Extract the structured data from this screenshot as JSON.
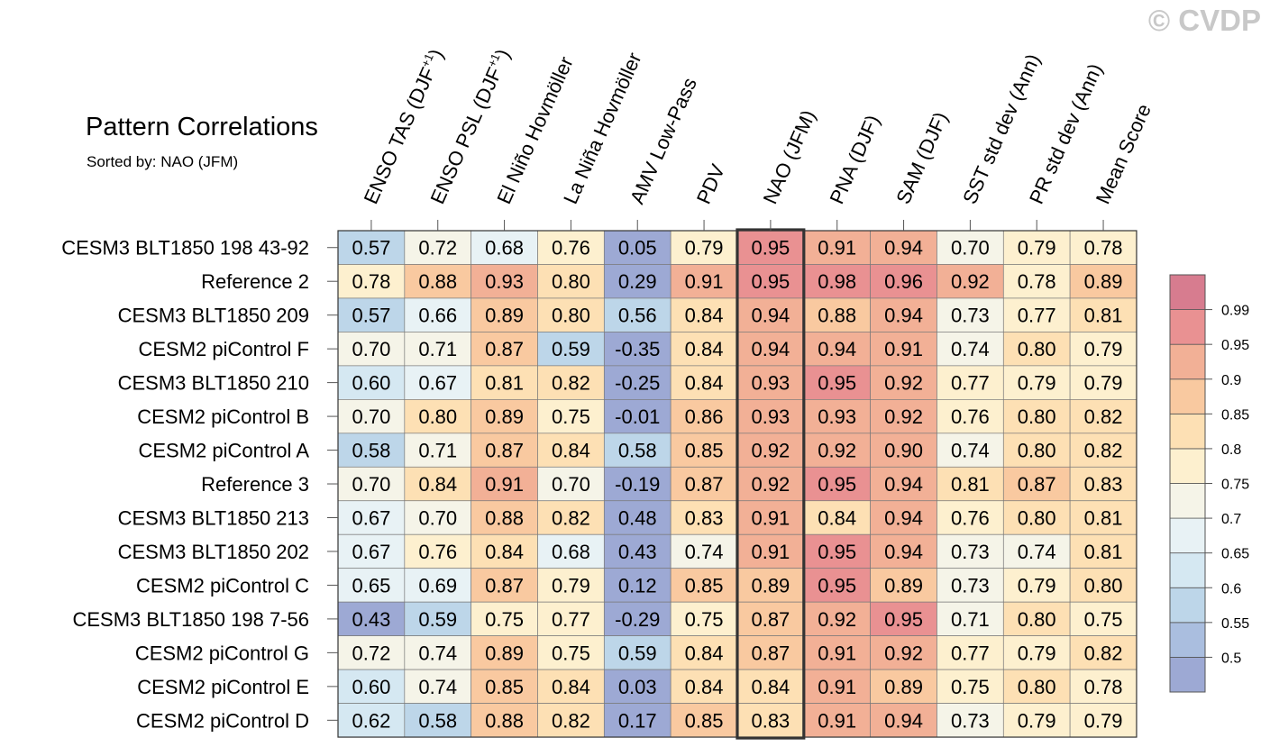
{
  "watermark": "© CVDP",
  "chart_data": {
    "type": "heatmap",
    "title": "Pattern Correlations",
    "subtitle": "Sorted by: NAO (JFM)",
    "highlight_column": "NAO (JFM)",
    "columns": [
      {
        "id": "enso-tas",
        "base": "ENSO TAS (DJF",
        "sup": "+1",
        "tail": ")"
      },
      {
        "id": "enso-psl",
        "base": "ENSO PSL (DJF",
        "sup": "+1",
        "tail": ")"
      },
      {
        "id": "el-nino",
        "base": "El Niño Hovmöller",
        "sup": "",
        "tail": ""
      },
      {
        "id": "la-nina",
        "base": "La Niña Hovmöller",
        "sup": "",
        "tail": ""
      },
      {
        "id": "amv",
        "base": "AMV Low-Pass",
        "sup": "",
        "tail": ""
      },
      {
        "id": "pdv",
        "base": "PDV",
        "sup": "",
        "tail": ""
      },
      {
        "id": "nao",
        "base": "NAO (JFM)",
        "sup": "",
        "tail": ""
      },
      {
        "id": "pna",
        "base": "PNA (DJF)",
        "sup": "",
        "tail": ""
      },
      {
        "id": "sam",
        "base": "SAM (DJF)",
        "sup": "",
        "tail": ""
      },
      {
        "id": "sst-sd",
        "base": "SST std dev (Ann)",
        "sup": "",
        "tail": ""
      },
      {
        "id": "pr-sd",
        "base": "PR std dev (Ann)",
        "sup": "",
        "tail": ""
      },
      {
        "id": "mean-score",
        "base": "Mean Score",
        "sup": "",
        "tail": ""
      }
    ],
    "rows": [
      "CESM3 BLT1850 198 43-92",
      "Reference 2",
      "CESM3 BLT1850 209",
      "CESM2 piControl F",
      "CESM3 BLT1850 210",
      "CESM2 piControl B",
      "CESM2 piControl A",
      "Reference 3",
      "CESM3 BLT1850 213",
      "CESM3 BLT1850 202",
      "CESM2 piControl C",
      "CESM3 BLT1850 198 7-56",
      "CESM2 piControl G",
      "CESM2 piControl E",
      "CESM2 piControl D"
    ],
    "values": [
      [
        "0.57",
        "0.72",
        "0.68",
        "0.76",
        "0.05",
        "0.79",
        "0.95",
        "0.91",
        "0.94",
        "0.70",
        "0.79",
        "0.78"
      ],
      [
        "0.78",
        "0.88",
        "0.93",
        "0.80",
        "0.29",
        "0.91",
        "0.95",
        "0.98",
        "0.96",
        "0.92",
        "0.78",
        "0.89"
      ],
      [
        "0.57",
        "0.66",
        "0.89",
        "0.80",
        "0.56",
        "0.84",
        "0.94",
        "0.88",
        "0.94",
        "0.73",
        "0.77",
        "0.81"
      ],
      [
        "0.70",
        "0.71",
        "0.87",
        "0.59",
        "-0.35",
        "0.84",
        "0.94",
        "0.94",
        "0.91",
        "0.74",
        "0.80",
        "0.79"
      ],
      [
        "0.60",
        "0.67",
        "0.81",
        "0.82",
        "-0.25",
        "0.84",
        "0.93",
        "0.95",
        "0.92",
        "0.77",
        "0.79",
        "0.79"
      ],
      [
        "0.70",
        "0.80",
        "0.89",
        "0.75",
        "-0.01",
        "0.86",
        "0.93",
        "0.93",
        "0.92",
        "0.76",
        "0.80",
        "0.82"
      ],
      [
        "0.58",
        "0.71",
        "0.87",
        "0.84",
        "0.58",
        "0.85",
        "0.92",
        "0.92",
        "0.90",
        "0.74",
        "0.80",
        "0.82"
      ],
      [
        "0.70",
        "0.84",
        "0.91",
        "0.70",
        "-0.19",
        "0.87",
        "0.92",
        "0.95",
        "0.94",
        "0.81",
        "0.87",
        "0.83"
      ],
      [
        "0.67",
        "0.70",
        "0.88",
        "0.82",
        "0.48",
        "0.83",
        "0.91",
        "0.84",
        "0.94",
        "0.76",
        "0.80",
        "0.81"
      ],
      [
        "0.67",
        "0.76",
        "0.84",
        "0.68",
        "0.43",
        "0.74",
        "0.91",
        "0.95",
        "0.94",
        "0.73",
        "0.74",
        "0.81"
      ],
      [
        "0.65",
        "0.69",
        "0.87",
        "0.79",
        "0.12",
        "0.85",
        "0.89",
        "0.95",
        "0.89",
        "0.73",
        "0.79",
        "0.80"
      ],
      [
        "0.43",
        "0.59",
        "0.75",
        "0.77",
        "-0.29",
        "0.75",
        "0.87",
        "0.92",
        "0.95",
        "0.71",
        "0.80",
        "0.75"
      ],
      [
        "0.72",
        "0.74",
        "0.89",
        "0.75",
        "0.59",
        "0.84",
        "0.87",
        "0.91",
        "0.92",
        "0.77",
        "0.79",
        "0.82"
      ],
      [
        "0.60",
        "0.74",
        "0.85",
        "0.84",
        "0.03",
        "0.84",
        "0.84",
        "0.91",
        "0.89",
        "0.75",
        "0.80",
        "0.78"
      ],
      [
        "0.62",
        "0.58",
        "0.88",
        "0.82",
        "0.17",
        "0.85",
        "0.83",
        "0.91",
        "0.94",
        "0.73",
        "0.79",
        "0.79"
      ]
    ],
    "colorbar": {
      "levels": [
        0.5,
        0.55,
        0.6,
        0.65,
        0.7,
        0.75,
        0.8,
        0.85,
        0.9,
        0.95,
        0.99
      ],
      "labels": [
        "0.5",
        "0.55",
        "0.6",
        "0.65",
        "0.7",
        "0.75",
        "0.8",
        "0.85",
        "0.9",
        "0.95",
        "0.99"
      ],
      "colors": [
        "#9da9d4",
        "#aabedf",
        "#bdd6e9",
        "#d5e8f2",
        "#e8f2f5",
        "#f5f4e8",
        "#fdf0cf",
        "#fde0b4",
        "#f9c9a0",
        "#f2b096",
        "#e99192",
        "#d77c8f"
      ]
    }
  }
}
